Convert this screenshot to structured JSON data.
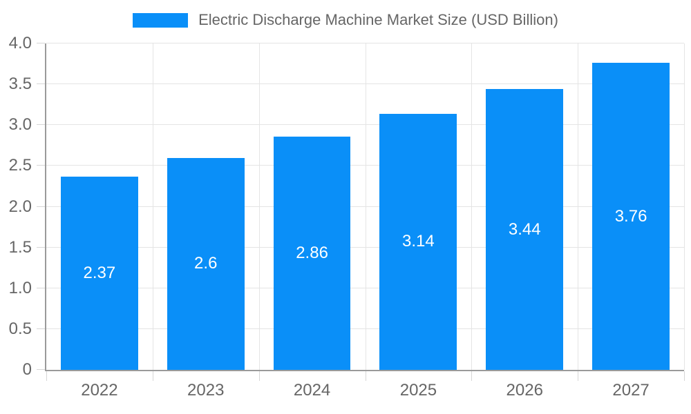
{
  "legend": {
    "label": "Electric Discharge Machine Market Size (USD Billion)"
  },
  "chart_data": {
    "type": "bar",
    "title": "Electric Discharge Machine Market Size (USD Billion)",
    "categories": [
      "2022",
      "2023",
      "2024",
      "2025",
      "2026",
      "2027"
    ],
    "values": [
      2.37,
      2.6,
      2.86,
      3.14,
      3.44,
      3.76
    ],
    "value_labels": [
      "2.37",
      "2.6",
      "2.86",
      "3.14",
      "3.44",
      "3.76"
    ],
    "xlabel": "",
    "ylabel": "",
    "ylim": [
      0,
      4.0
    ],
    "ytick_step": 0.5,
    "ytick_labels": [
      "0",
      "0.5",
      "1.0",
      "1.5",
      "2.0",
      "2.5",
      "3.0",
      "3.5",
      "4.0"
    ],
    "grid": "on",
    "legend_position": "top-center",
    "colors": {
      "bar": "#0a8ff8",
      "grid": "#e4e4e4",
      "axis": "#9a9a9a",
      "tick": "#d6d6d6",
      "tick_label": "#666666",
      "value_label": "#ffffff",
      "background": "#ffffff"
    }
  }
}
